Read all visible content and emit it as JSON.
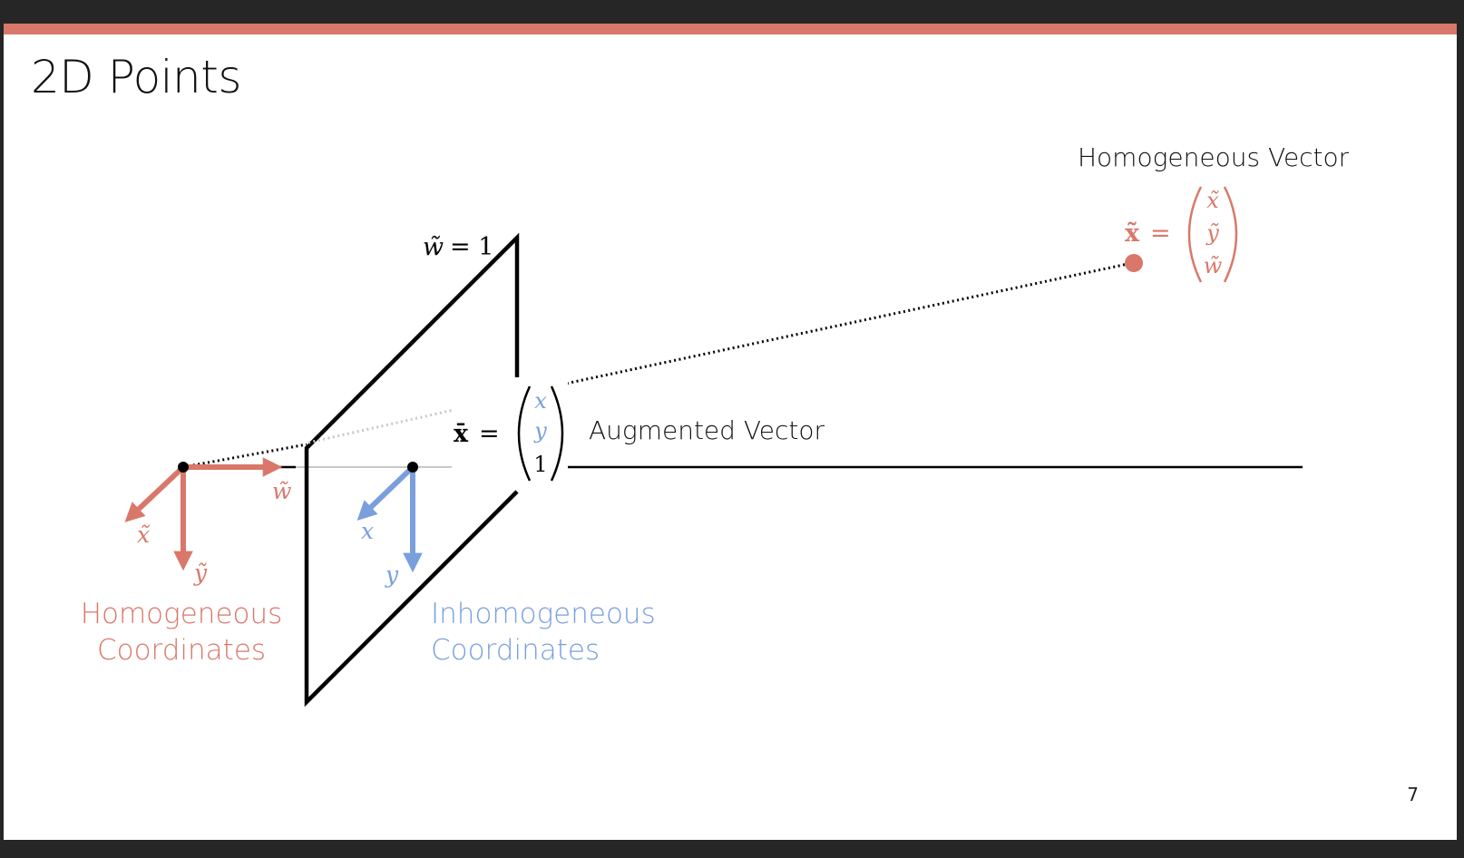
{
  "slide": {
    "title": "2D Points",
    "page_number": "7"
  },
  "colors": {
    "background": "#262626",
    "accent": "#d9786a",
    "homogeneous": "#d9786a",
    "inhomogeneous": "#7a9fdd",
    "plane": "#000000",
    "guide": "#c8c8c8"
  },
  "diagram": {
    "plane_label_w": "w̃",
    "plane_label_eq": "= 1",
    "homogeneous_vector_title": "Homogeneous Vector",
    "homogeneous_vector_symbol": "x̃",
    "homogeneous_vector_entries": [
      "x̃",
      "ỹ",
      "w̃"
    ],
    "augmented_vector_title": "Augmented Vector",
    "augmented_vector_symbol": "x̄",
    "augmented_vector_entries": [
      "x",
      "y",
      "1"
    ],
    "equals": "=",
    "homogeneous_axes": {
      "x": "x̃",
      "y": "ỹ",
      "w": "w̃"
    },
    "inhomogeneous_axes": {
      "x": "x",
      "y": "y"
    },
    "homogeneous_label_line1": "Homogeneous",
    "homogeneous_label_line2": "Coordinates",
    "inhomogeneous_label_line1": "Inhomogeneous",
    "inhomogeneous_label_line2": "Coordinates"
  }
}
